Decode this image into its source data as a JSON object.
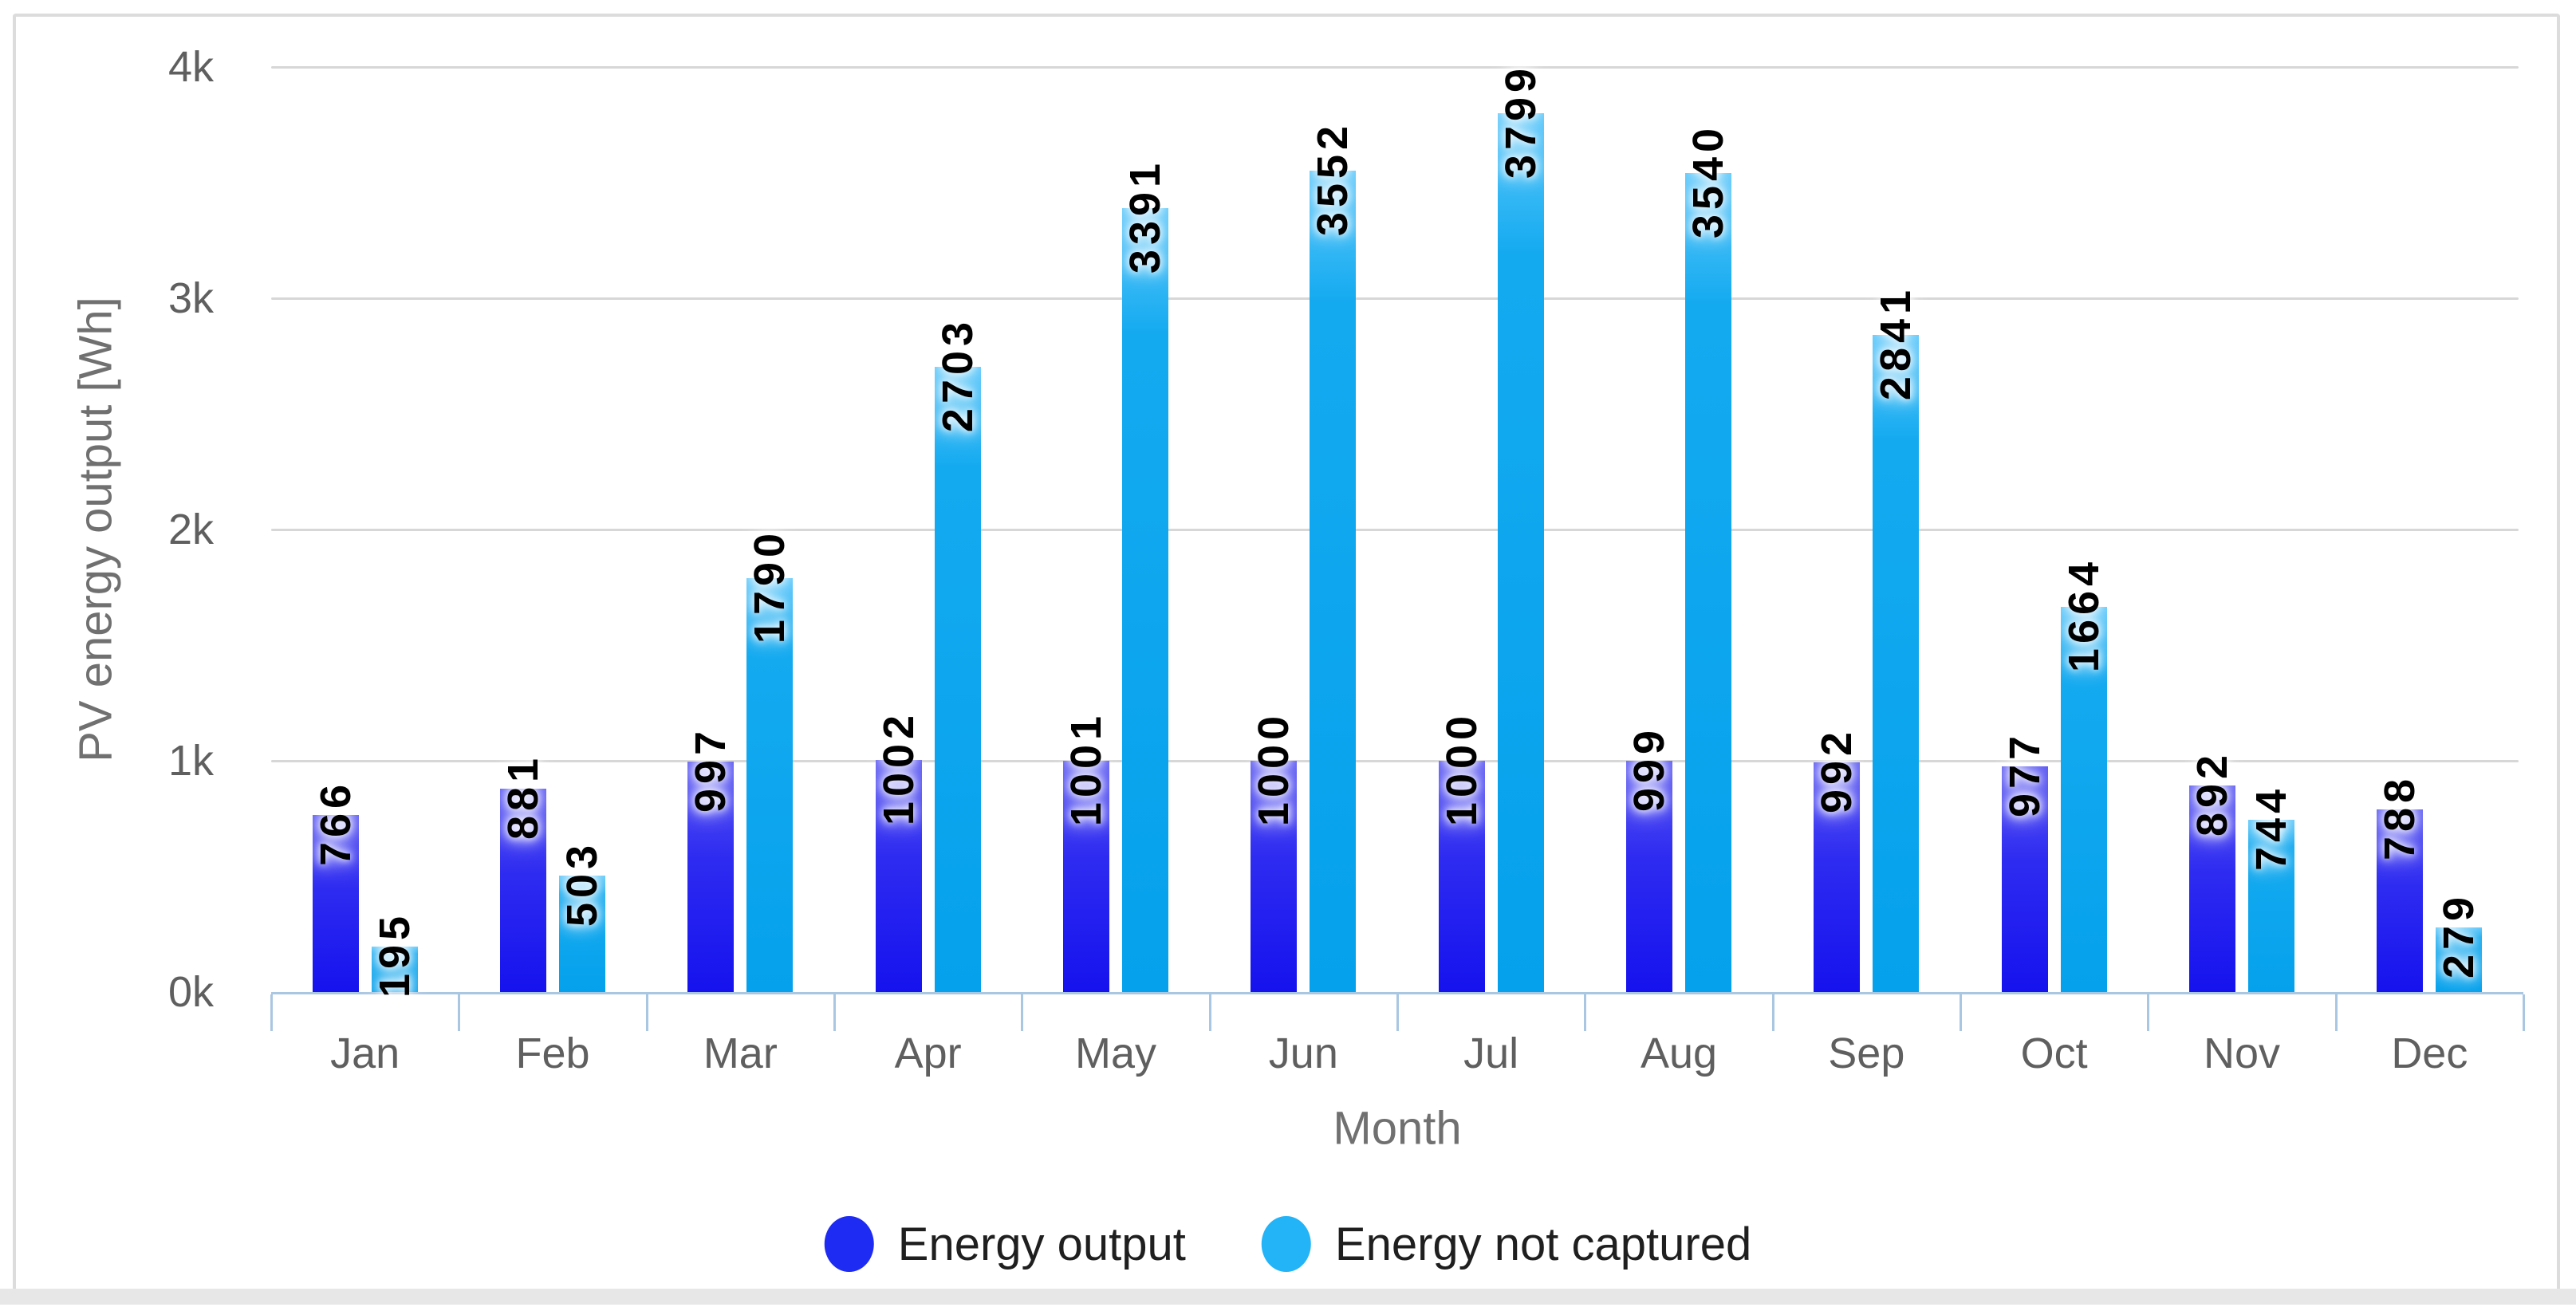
{
  "chart_data": {
    "type": "bar",
    "title": "",
    "categories": [
      "Jan",
      "Feb",
      "Mar",
      "Apr",
      "May",
      "Jun",
      "Jul",
      "Aug",
      "Sep",
      "Oct",
      "Nov",
      "Dec"
    ],
    "series": [
      {
        "name": "Energy output",
        "color": "#2222ef",
        "values": [
          766,
          881,
          997,
          1002,
          1001,
          1000,
          1000,
          999,
          992,
          977,
          892,
          788
        ]
      },
      {
        "name": "Energy not captured",
        "color": "#18adf2",
        "values": [
          195,
          503,
          1790,
          2703,
          3391,
          3552,
          3799,
          3540,
          2841,
          1664,
          744,
          279
        ]
      }
    ],
    "xlabel": "Month",
    "ylabel": "PV energy output [Wh]",
    "ylim": [
      0,
      4000
    ],
    "yticks": {
      "values": [
        0,
        1000,
        2000,
        3000,
        4000
      ],
      "labels": [
        "0k",
        "1k",
        "2k",
        "3k",
        "4k"
      ]
    },
    "grid": "horizontal gridlines at 1k-4k",
    "legend_position": "bottom-center",
    "data_labels": "value at bar top, rotated 90deg CCW, bold black with white halo",
    "colors": {
      "axis_line": "#aac7e2",
      "gridline": "#d7d7d7",
      "tick_text": "#5f5f5f",
      "axis_title_text": "#707070",
      "legend_text": "#1f1f1f",
      "card_border": "#dcdcdc",
      "bottom_strip": "#e7e7e7",
      "background": "#ffffff"
    }
  }
}
